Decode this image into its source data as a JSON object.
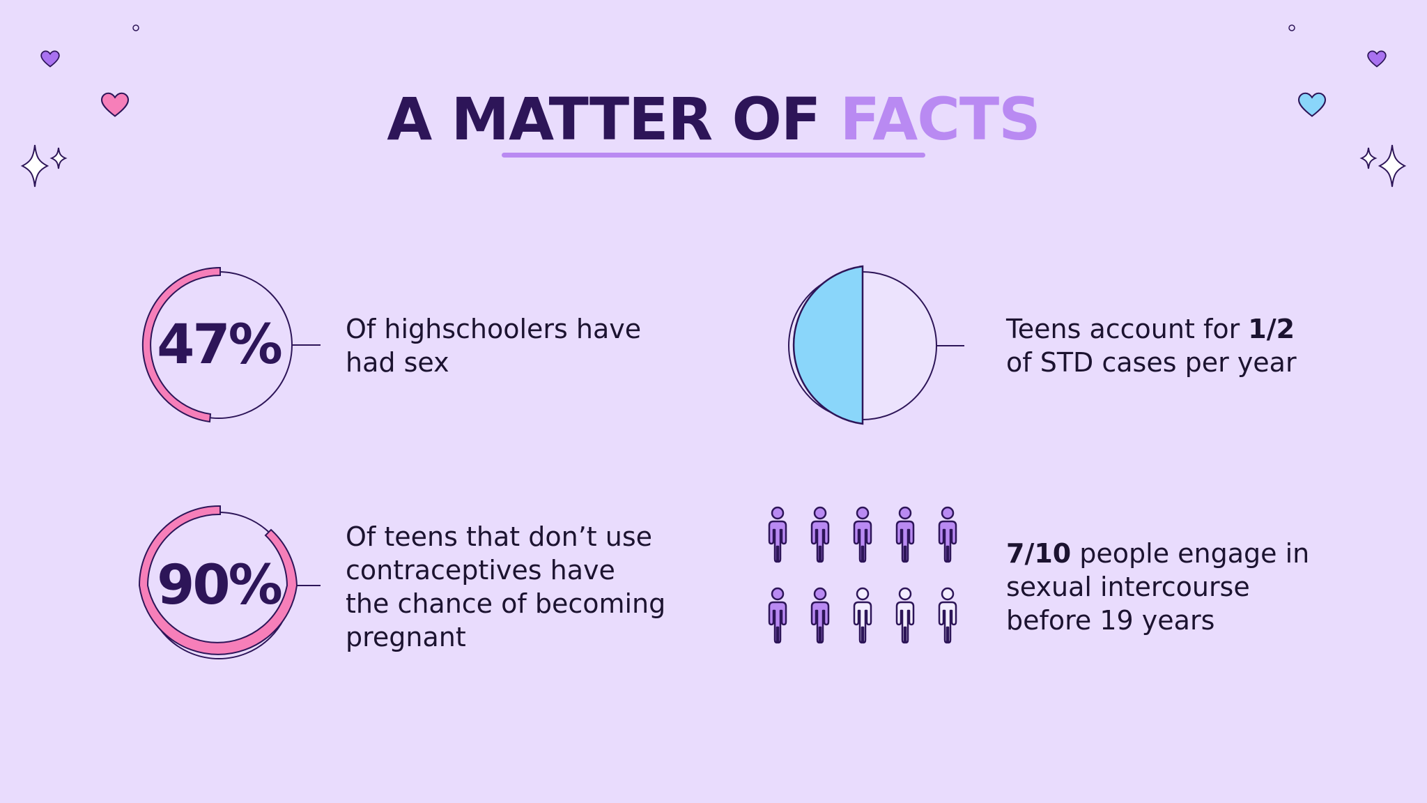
{
  "title": {
    "part1": "A MATTER OF ",
    "part2": "FACTS"
  },
  "facts": [
    {
      "value": "47%",
      "percent": 47,
      "text": "Of highschoolers have had sex"
    },
    {
      "value": "90%",
      "percent": 90,
      "text": "Of teens that don’t use contraceptives have the chance of becoming pregnant"
    },
    {
      "text_before": "Teens account for ",
      "bold": "1/2",
      "text_after": " of STD cases per year",
      "fraction": 0.5
    },
    {
      "bold": "7/10",
      "text_after": " people engage in sexual intercourse before 19 years",
      "filled": 7,
      "total": 10
    }
  ],
  "colors": {
    "background": "#e9dcfd",
    "dark": "#2d1558",
    "purple": "#b98af2",
    "pink": "#f67fb9",
    "blue": "#8ad6fa"
  },
  "decorations": [
    "heart-icon",
    "sparkle-icon",
    "circle-dot-icon"
  ]
}
